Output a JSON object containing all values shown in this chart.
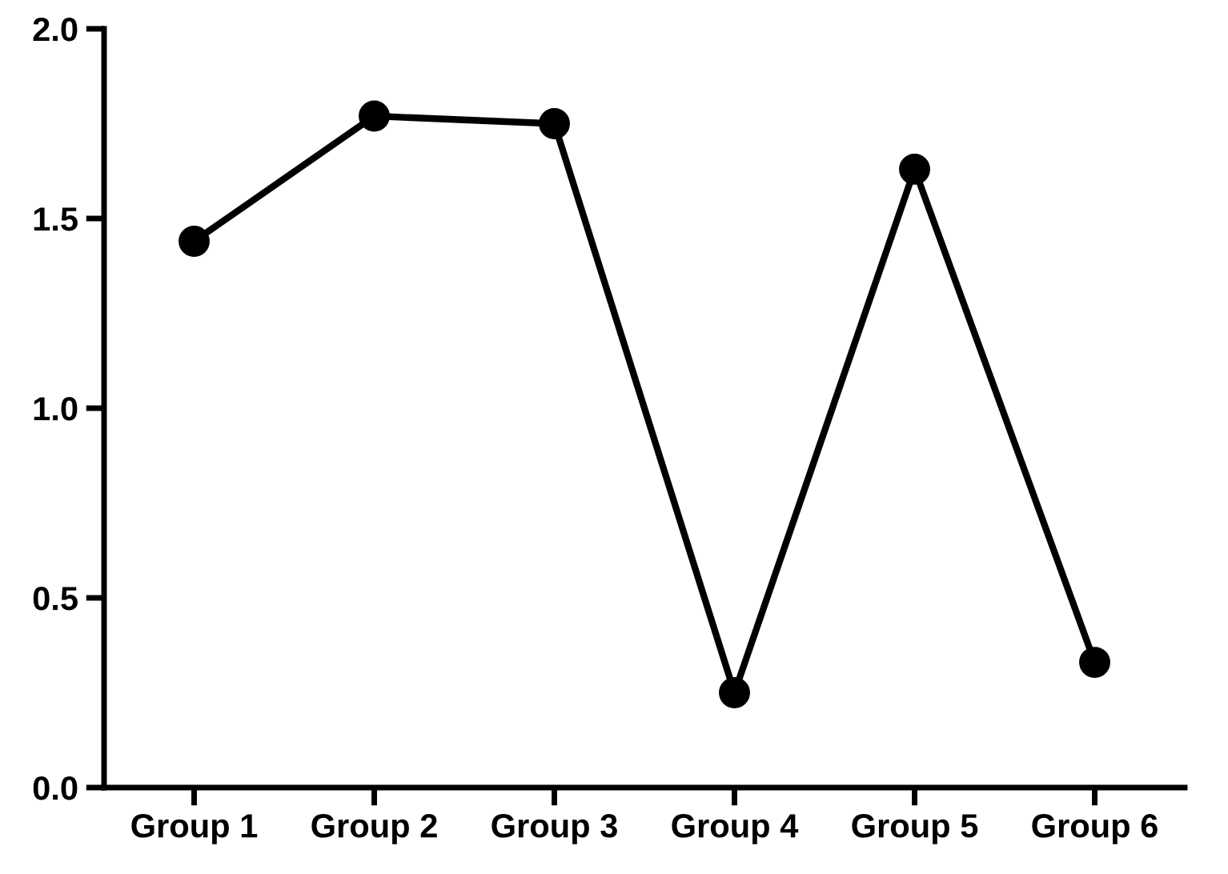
{
  "chart_data": {
    "type": "line",
    "categories": [
      "Group 1",
      "Group 2",
      "Group 3",
      "Group 4",
      "Group 5",
      "Group 6"
    ],
    "series": [
      {
        "color": "#000000",
        "values": [
          1.44,
          1.77,
          1.75,
          0.25,
          1.63,
          0.33
        ]
      }
    ],
    "ylim": [
      0,
      2.0
    ],
    "yticks": [
      {
        "value": 0,
        "label": "0.0"
      },
      {
        "value": 0.5,
        "label": "0.5"
      },
      {
        "value": 1.0,
        "label": "1.0"
      },
      {
        "value": 1.5,
        "label": "1.5"
      },
      {
        "value": 2.0,
        "label": "2.0"
      }
    ],
    "marker": "circle",
    "line_style": "solid",
    "grid": false,
    "legend": false
  }
}
